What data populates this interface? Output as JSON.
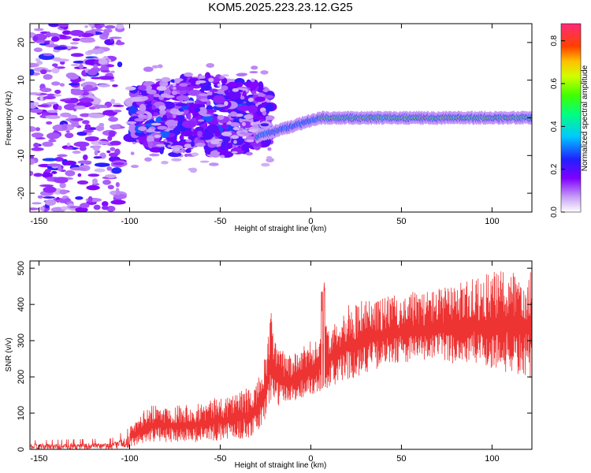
{
  "title": "KOM5.2025.223.23.12.G25",
  "chart_data": [
    {
      "type": "heatmap",
      "name": "spectrogram",
      "xlabel": "Height of straight line (km)",
      "ylabel": "Frequency (Hz)",
      "xlim": [
        -155,
        122
      ],
      "ylim": [
        -25,
        25
      ],
      "xticks": [
        -150,
        -100,
        -50,
        0,
        50,
        100
      ],
      "xtick_labels": [
        "-150",
        "-100",
        "-50",
        "0",
        "50",
        "100"
      ],
      "yticks": [
        -20,
        -10,
        0,
        10,
        20
      ],
      "ytick_labels": [
        "-20",
        "-10",
        "0",
        "10",
        "20"
      ],
      "colorbar": {
        "label": "Normalized spectral amplitude",
        "range": [
          0,
          0.88
        ],
        "ticks": [
          0.0,
          0.2,
          0.4,
          0.6,
          0.8
        ],
        "tick_labels": [
          "0.0",
          "0.2",
          "0.4",
          "0.6",
          "0.8"
        ]
      },
      "regions": [
        {
          "x": [
            -155,
            -105
          ],
          "freq_center": 0,
          "freq_spread": 25,
          "amp": 0.1,
          "density": "sparse"
        },
        {
          "x": [
            -100,
            -22
          ],
          "freq_center": 0,
          "freq_spread": 8,
          "amp": 0.25,
          "density": "dense"
        },
        {
          "x": [
            -30,
            5
          ],
          "freq_line": [
            -5,
            0
          ],
          "amp": 0.35,
          "density": "line"
        },
        {
          "x": [
            5,
            122
          ],
          "freq_line": [
            0,
            0
          ],
          "amp": 0.55,
          "density": "line"
        }
      ]
    },
    {
      "type": "line",
      "name": "snr",
      "xlabel": "Height of straight line (km)",
      "ylabel": "SNR (v/v)",
      "xlim": [
        -155,
        122
      ],
      "ylim": [
        0,
        520
      ],
      "xticks": [
        -150,
        -100,
        -50,
        0,
        50,
        100
      ],
      "xtick_labels": [
        "-150",
        "-100",
        "-50",
        "0",
        "50",
        "100"
      ],
      "yticks": [
        0,
        100,
        200,
        300,
        400,
        500
      ],
      "ytick_labels": [
        "0",
        "100",
        "200",
        "300",
        "400",
        "500"
      ],
      "color": "#ee3333",
      "envelope": [
        {
          "x": -155,
          "low": 0,
          "high": 25
        },
        {
          "x": -110,
          "low": 0,
          "high": 30
        },
        {
          "x": -100,
          "low": 5,
          "high": 60
        },
        {
          "x": -90,
          "low": 20,
          "high": 120
        },
        {
          "x": -60,
          "low": 20,
          "high": 130
        },
        {
          "x": -35,
          "low": 30,
          "high": 170
        },
        {
          "x": -30,
          "low": 40,
          "high": 180
        },
        {
          "x": -25,
          "low": 80,
          "high": 260
        },
        {
          "x": -22,
          "low": 130,
          "high": 380
        },
        {
          "x": -18,
          "low": 120,
          "high": 280
        },
        {
          "x": -10,
          "low": 130,
          "high": 260
        },
        {
          "x": 0,
          "low": 150,
          "high": 300
        },
        {
          "x": 10,
          "low": 170,
          "high": 350
        },
        {
          "x": 20,
          "low": 190,
          "high": 400
        },
        {
          "x": 35,
          "low": 220,
          "high": 420
        },
        {
          "x": 50,
          "low": 240,
          "high": 430
        },
        {
          "x": 75,
          "low": 240,
          "high": 450
        },
        {
          "x": 100,
          "low": 220,
          "high": 490
        },
        {
          "x": 122,
          "low": 190,
          "high": 510
        }
      ]
    }
  ]
}
